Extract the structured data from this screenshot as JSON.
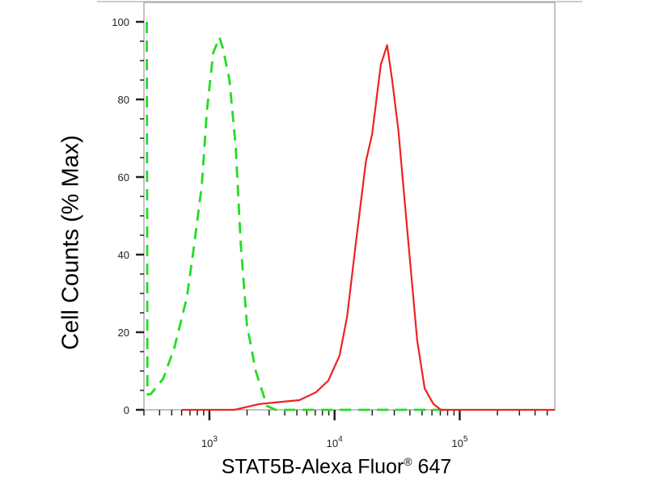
{
  "chart_data": {
    "type": "line",
    "title": "",
    "xlabel": "STAT5B-Alexa Fluor",
    "xlabel_sup": "®",
    "xlabel_suffix": " 647",
    "ylabel": "Cell Counts (% Max)",
    "x_scale": "log",
    "xlim": [
      300,
      575000
    ],
    "ylim": [
      0,
      100
    ],
    "x_ticks": [
      {
        "base": "10",
        "exp": "3",
        "value": 1000
      },
      {
        "base": "10",
        "exp": "4",
        "value": 10000
      },
      {
        "base": "10",
        "exp": "5",
        "value": 100000
      }
    ],
    "y_ticks": [
      "0",
      "20",
      "40",
      "60",
      "80",
      "100"
    ],
    "grid": false,
    "legend": "none",
    "series": [
      {
        "color": "#22dd22",
        "style": "dashed",
        "x": [
          316,
          320,
          339,
          427,
          525,
          661,
          759,
          871,
          955,
          1072,
          1202,
          1288,
          1445,
          1622,
          1778,
          1995,
          2344,
          2884,
          3388,
          75858
        ],
        "y": [
          100,
          4,
          4,
          8,
          16,
          29,
          43,
          58,
          77,
          92,
          96,
          93,
          85,
          68,
          43,
          22,
          10,
          1,
          0,
          0
        ]
      },
      {
        "color": "#ee2222",
        "style": "solid",
        "x": [
          600,
          1585,
          2512,
          3631,
          5248,
          7079,
          8913,
          10965,
          12589,
          14791,
          17783,
          19953,
          23442,
          26303,
          28840,
          32359,
          38905,
          45709,
          52481,
          61660,
          70795,
          575440
        ],
        "y": [
          0,
          0,
          1.5,
          2,
          2.5,
          4.5,
          7.5,
          14,
          24,
          43,
          64,
          71,
          89,
          94,
          85,
          72,
          43,
          18,
          5.5,
          1.5,
          0,
          0
        ]
      }
    ]
  }
}
